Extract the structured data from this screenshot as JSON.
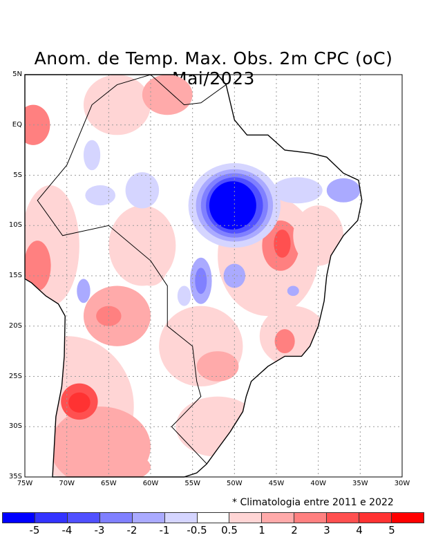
{
  "title": "Anom. de Temp. Max. Obs. 2m CPC (oC) Mai/2023",
  "note": "* Climatologia entre 2011 e 2022",
  "lat_ticks": [
    "5N",
    "EQ",
    "5S",
    "10S",
    "15S",
    "20S",
    "25S",
    "30S",
    "35S"
  ],
  "lon_ticks": [
    "75W",
    "70W",
    "65W",
    "60W",
    "55W",
    "50W",
    "45W",
    "40W",
    "35W",
    "30W"
  ],
  "colorbar": {
    "colors": [
      "#0000ff",
      "#3333ff",
      "#5050ff",
      "#8080ff",
      "#aaaaff",
      "#d5d5ff",
      "#ffffff",
      "#ffd5d5",
      "#ffaaaa",
      "#ff8080",
      "#ff5050",
      "#ff3232",
      "#ff0000"
    ],
    "labels": [
      "-5",
      "-4",
      "-3",
      "-2",
      "-1",
      "-0.5",
      "0.5",
      "1",
      "2",
      "3",
      "4",
      "5"
    ]
  }
}
